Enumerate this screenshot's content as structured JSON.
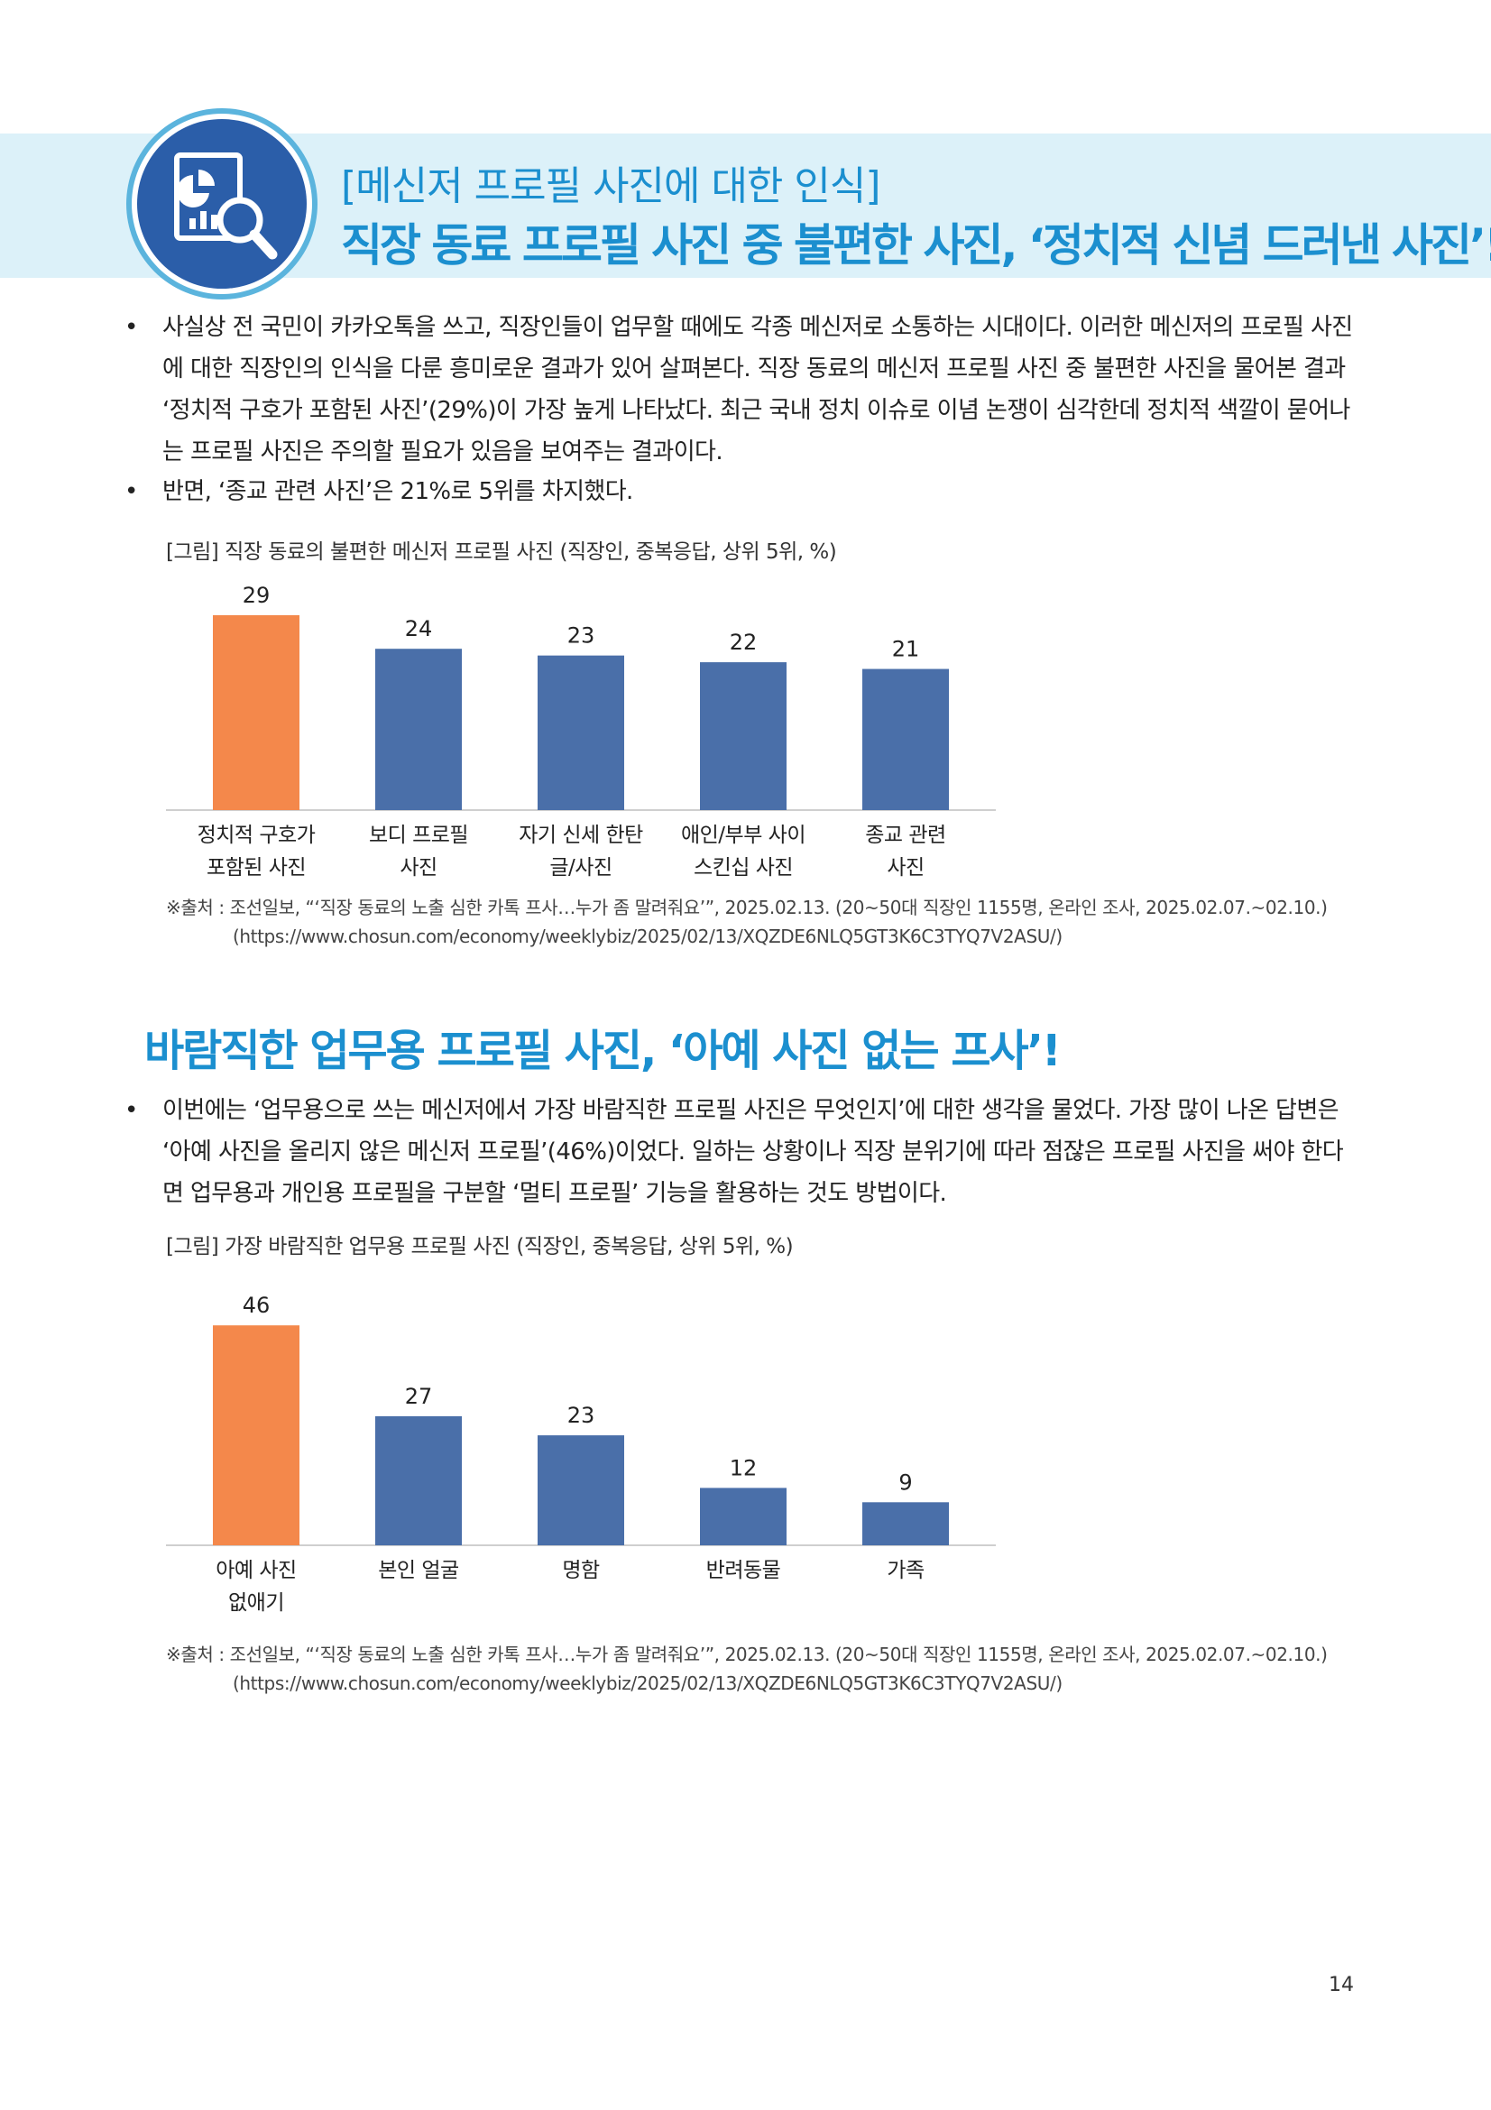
{
  "header": {
    "subtitle": "[메신저 프로필 사진에 대한 인식]",
    "title": "직장 동료 프로필 사진 중 불편한 사진, ‘정치적 신념 드러낸 사진’!",
    "icon": "report-magnifier-icon"
  },
  "section1": {
    "bullets": [
      "사실상 전 국민이 카카오톡을 쓰고, 직장인들이 업무할 때에도 각종 메신저로 소통하는 시대이다. 이러한 메신저의 프로필 사진에 대한 직장인의 인식을 다룬 흥미로운 결과가 있어 살펴본다. 직장 동료의 메신저 프로필 사진 중 불편한 사진을 물어본 결과 ‘정치적 구호가 포함된 사진’(29%)이 가장 높게 나타났다. 최근 국내 정치 이슈로 이념 논쟁이 심각한데 정치적 색깔이 묻어나는 프로필 사진은 주의할 필요가 있음을 보여주는 결과이다.",
      "반면, ‘종교 관련 사진’은 21%로 5위를 차지했다."
    ],
    "figure_title": "[그림] 직장 동료의 불편한 메신저 프로필 사진 (직장인, 중복응답, 상위 5위, %)",
    "source": "※출처 : 조선일보, “‘직장 동료의 노출 심한 카톡 프사…누가 좀 말려줘요’”, 2025.02.13. (20~50대 직장인 1155명, 온라인 조사, 2025.02.07.~02.10.)",
    "source_url": "(https://www.chosun.com/economy/weeklybiz/2025/02/13/XQZDE6NLQ5GT3K6C3TYQ7V2ASU/)"
  },
  "section2": {
    "title": "바람직한 업무용 프로필 사진, ‘아예 사진 없는 프사’!",
    "bullets": [
      "이번에는 ‘업무용으로 쓰는 메신저에서 가장 바람직한 프로필 사진은 무엇인지’에 대한 생각을 물었다. 가장 많이 나온 답변은 ‘아예 사진을 올리지 않은 메신저 프로필’(46%)이었다. 일하는 상황이나 직장 분위기에 따라 점잖은 프로필 사진을 써야 한다면 업무용과 개인용 프로필을 구분할 ‘멀티 프로필’ 기능을 활용하는 것도 방법이다."
    ],
    "figure_title": "[그림] 가장 바람직한 업무용 프로필 사진 (직장인, 중복응답, 상위 5위, %)",
    "source": "※출처 : 조선일보, “‘직장 동료의 노출 심한 카톡 프사…누가 좀 말려줘요’”, 2025.02.13. (20~50대 직장인 1155명, 온라인 조사, 2025.02.07.~02.10.)",
    "source_url": "(https://www.chosun.com/economy/weeklybiz/2025/02/13/XQZDE6NLQ5GT3K6C3TYQ7V2ASU/)"
  },
  "colors": {
    "accent": "#1b8fcf",
    "highlight_bar": "#f4884b",
    "bar": "#4a6fa9",
    "banner": "#dcf1f9"
  },
  "chart_data": [
    {
      "type": "bar",
      "title": "[그림] 직장 동료의 불편한 메신저 프로필 사진 (직장인, 중복응답, 상위 5위, %)",
      "categories": [
        "정치적 구호가\n포함된 사진",
        "보디 프로필\n사진",
        "자기 신세 한탄\n글/사진",
        "애인/부부 사이\n스킨십 사진",
        "종교 관련\n사진"
      ],
      "values": [
        29,
        24,
        23,
        22,
        21
      ],
      "highlight_index": 0,
      "ylim": [
        0,
        30
      ],
      "xlabel": "",
      "ylabel": ""
    },
    {
      "type": "bar",
      "title": "[그림] 가장 바람직한 업무용 프로필 사진 (직장인, 중복응답, 상위 5위, %)",
      "categories": [
        "아예 사진\n없애기",
        "본인 얼굴",
        "명함",
        "반려동물",
        "가족"
      ],
      "values": [
        46,
        27,
        23,
        12,
        9
      ],
      "highlight_index": 0,
      "ylim": [
        0,
        48
      ],
      "xlabel": "",
      "ylabel": ""
    }
  ],
  "page_number": "14"
}
